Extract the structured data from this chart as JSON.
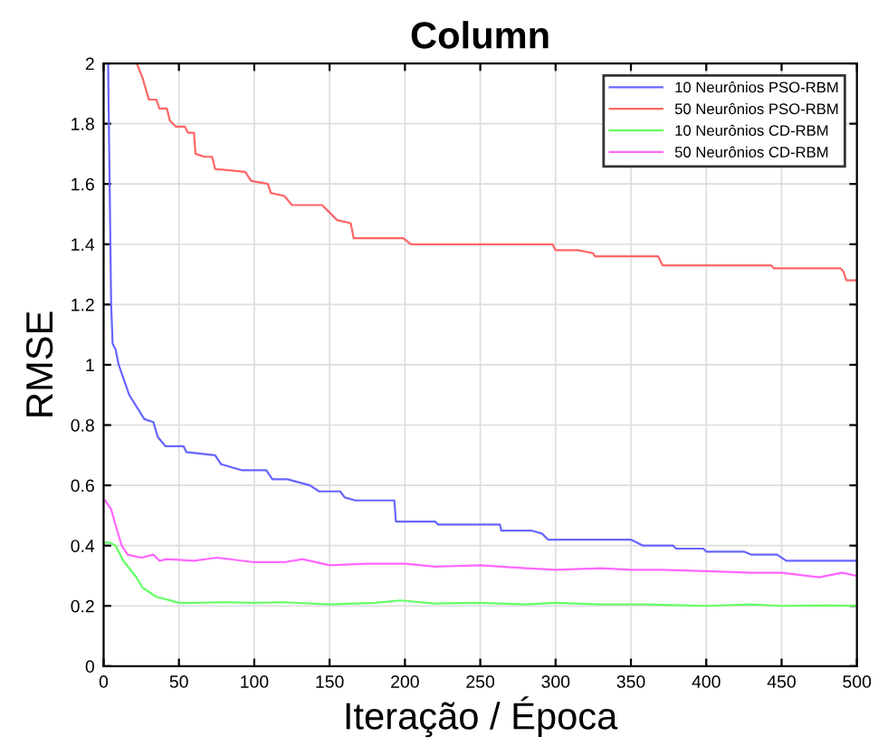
{
  "chart_data": {
    "type": "line",
    "title": "Column",
    "xlabel": "Iteração / Época",
    "ylabel": "RMSE",
    "xlim": [
      0,
      500
    ],
    "ylim": [
      0,
      2
    ],
    "xticks": [
      0,
      50,
      100,
      150,
      200,
      250,
      300,
      350,
      400,
      450,
      500
    ],
    "yticks": [
      0,
      0.2,
      0.4,
      0.6,
      0.8,
      1,
      1.2,
      1.4,
      1.6,
      1.8,
      2
    ],
    "grid": true,
    "legend": "top right",
    "marker": "none",
    "line_style": "solid",
    "series": [
      {
        "name": "10 Neurônios PSO-RBM",
        "color": "#6666ff",
        "x": [
          3,
          4,
          5,
          6,
          8,
          10,
          17,
          27,
          33,
          36,
          41,
          53,
          55,
          74,
          78,
          92,
          108,
          112,
          122,
          137,
          143,
          157,
          160,
          167,
          193,
          194,
          220,
          222,
          263,
          264,
          284,
          291,
          295,
          350,
          358,
          378,
          380,
          398,
          400,
          425,
          430,
          447,
          453,
          500
        ],
        "values": [
          2.0,
          1.6,
          1.2,
          1.07,
          1.05,
          1.0,
          0.9,
          0.82,
          0.81,
          0.76,
          0.73,
          0.73,
          0.71,
          0.7,
          0.67,
          0.65,
          0.65,
          0.62,
          0.62,
          0.6,
          0.58,
          0.58,
          0.56,
          0.55,
          0.55,
          0.48,
          0.48,
          0.47,
          0.47,
          0.45,
          0.45,
          0.44,
          0.42,
          0.42,
          0.4,
          0.4,
          0.39,
          0.39,
          0.38,
          0.38,
          0.37,
          0.37,
          0.35,
          0.35
        ]
      },
      {
        "name": "50 Neurônios PSO-RBM",
        "color": "#ff6666",
        "x": [
          22,
          26,
          30,
          35,
          37,
          42,
          44,
          48,
          54,
          56,
          60,
          61,
          67,
          72,
          74,
          94,
          98,
          109,
          111,
          120,
          125,
          145,
          149,
          155,
          164,
          166,
          199,
          204,
          298,
          300,
          315,
          325,
          326,
          368,
          371,
          443,
          445,
          489,
          491,
          493,
          500
        ],
        "values": [
          2.0,
          1.95,
          1.88,
          1.88,
          1.85,
          1.85,
          1.81,
          1.79,
          1.79,
          1.77,
          1.77,
          1.7,
          1.69,
          1.69,
          1.65,
          1.64,
          1.61,
          1.6,
          1.57,
          1.56,
          1.53,
          1.53,
          1.51,
          1.48,
          1.47,
          1.42,
          1.42,
          1.4,
          1.4,
          1.38,
          1.38,
          1.37,
          1.36,
          1.36,
          1.33,
          1.33,
          1.32,
          1.32,
          1.31,
          1.28,
          1.28
        ]
      },
      {
        "name": "10 Neurônios CD-RBM",
        "color": "#66ff66",
        "x": [
          0,
          4,
          8,
          13,
          21,
          26,
          35,
          43,
          50,
          60,
          80,
          100,
          120,
          150,
          180,
          197,
          220,
          250,
          280,
          300,
          330,
          360,
          400,
          430,
          450,
          480,
          500
        ],
        "values": [
          0.41,
          0.41,
          0.4,
          0.35,
          0.3,
          0.26,
          0.23,
          0.22,
          0.21,
          0.21,
          0.212,
          0.21,
          0.212,
          0.205,
          0.21,
          0.218,
          0.208,
          0.21,
          0.205,
          0.21,
          0.205,
          0.205,
          0.2,
          0.205,
          0.2,
          0.202,
          0.2
        ]
      },
      {
        "name": "50 Neurônios CD-RBM",
        "color": "#ff66ff",
        "x": [
          1,
          5,
          9,
          12,
          16,
          25,
          33,
          37,
          42,
          60,
          75,
          100,
          120,
          132,
          150,
          175,
          200,
          220,
          250,
          280,
          300,
          330,
          350,
          370,
          400,
          430,
          450,
          475,
          490,
          500
        ],
        "values": [
          0.55,
          0.52,
          0.45,
          0.4,
          0.37,
          0.36,
          0.37,
          0.35,
          0.355,
          0.35,
          0.36,
          0.345,
          0.345,
          0.355,
          0.335,
          0.34,
          0.34,
          0.33,
          0.335,
          0.325,
          0.32,
          0.325,
          0.32,
          0.32,
          0.315,
          0.31,
          0.31,
          0.295,
          0.31,
          0.3
        ]
      }
    ]
  }
}
